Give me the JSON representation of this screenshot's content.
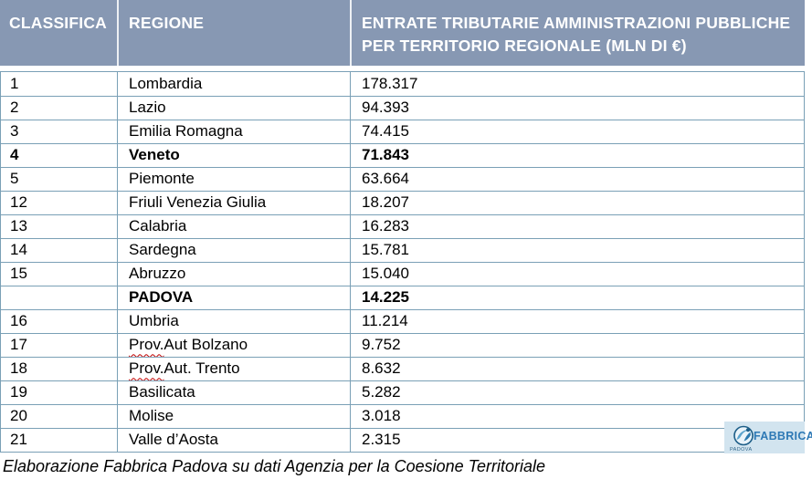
{
  "table": {
    "columns": [
      {
        "label": "CLASSIFICA"
      },
      {
        "label": "REGIONE"
      },
      {
        "label": "ENTRATE TRIBUTARIE AMMINISTRAZIONI PUBBLICHE PER TERRITORIO REGIONALE (MLN DI €)"
      }
    ],
    "rows": [
      {
        "rank": "1",
        "region": "Lombardia",
        "value": "178.317",
        "bold": false
      },
      {
        "rank": "2",
        "region": "Lazio",
        "value": "94.393",
        "bold": false
      },
      {
        "rank": "3",
        "region": "Emilia Romagna",
        "value": "74.415",
        "bold": false
      },
      {
        "rank": "4",
        "region": "Veneto",
        "value": "71.843",
        "bold": true
      },
      {
        "rank": "5",
        "region": "Piemonte",
        "value": "63.664",
        "bold": false
      },
      {
        "rank": "12",
        "region": "Friuli Venezia Giulia",
        "value": "18.207",
        "bold": false
      },
      {
        "rank": "13",
        "region": "Calabria",
        "value": "16.283",
        "bold": false
      },
      {
        "rank": "14",
        "region": "Sardegna",
        "value": "15.781",
        "bold": false
      },
      {
        "rank": "15",
        "region": "Abruzzo",
        "value": "15.040",
        "bold": false
      },
      {
        "rank": "",
        "region": "PADOVA",
        "value": "14.225",
        "bold": true
      },
      {
        "rank": "16",
        "region": "Umbria",
        "value": "11.214",
        "bold": false
      },
      {
        "rank": "17",
        "region": "Prov. Aut Bolzano",
        "value": "9.752",
        "bold": false,
        "squiggle_prefix": "Prov."
      },
      {
        "rank": "18",
        "region": "Prov. Aut. Trento",
        "value": "8.632",
        "bold": false,
        "squiggle_prefix": "Prov."
      },
      {
        "rank": "19",
        "region": "Basilicata",
        "value": "5.282",
        "bold": false
      },
      {
        "rank": "20",
        "region": "Molise",
        "value": "3.018",
        "bold": false
      },
      {
        "rank": "21",
        "region": "Valle d’Aosta",
        "value": "2.315",
        "bold": false
      }
    ]
  },
  "footer": {
    "text": "Elaborazione Fabbrica Padova su dati Agenzia per la Coesione Territoriale"
  },
  "logo": {
    "name": "FABBRICA",
    "city": "PADOVA"
  },
  "colors": {
    "header_bg": "#8798B3",
    "border": "#7AA0B6",
    "header_text": "#FFFFFF",
    "logo_bg": "#D2E4EF",
    "logo_text": "#2E79B5",
    "squiggle": "#C00000"
  }
}
